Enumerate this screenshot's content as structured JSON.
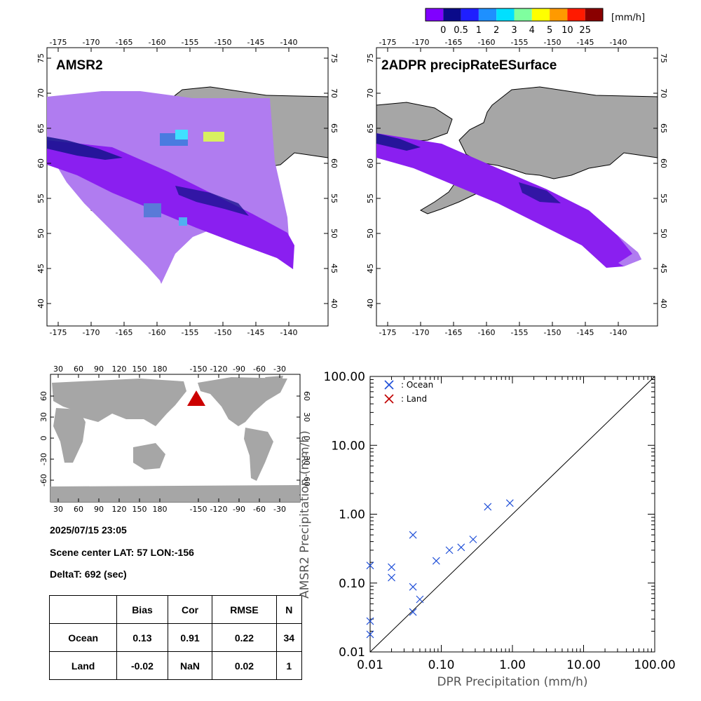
{
  "colorbar": {
    "unit": "[mm/h]",
    "labels": [
      "0",
      "0.5",
      "1",
      "2",
      "3",
      "4",
      "5",
      "10",
      "25"
    ],
    "colors": [
      "#8000ff",
      "#0a0a8a",
      "#1f1fff",
      "#1e90ff",
      "#00e0ff",
      "#7fff9f",
      "#ffff00",
      "#ff9a00",
      "#ff1a00",
      "#8a0000"
    ]
  },
  "map_amsr2": {
    "title": "AMSR2",
    "lon_ticks": [
      "-175",
      "-170",
      "-165",
      "-160",
      "-155",
      "-150",
      "-145",
      "-140"
    ],
    "lat_ticks": [
      "40",
      "45",
      "50",
      "55",
      "60",
      "65",
      "70",
      "75"
    ]
  },
  "map_dpr": {
    "title": "2ADPR precipRateESurface",
    "lon_ticks": [
      "-175",
      "-170",
      "-165",
      "-160",
      "-155",
      "-150",
      "-145",
      "-140"
    ],
    "lat_ticks": [
      "40",
      "45",
      "50",
      "55",
      "60",
      "65",
      "70",
      "75"
    ]
  },
  "world_map": {
    "lon_ticks": [
      "30",
      "60",
      "90",
      "120",
      "150",
      "180",
      "-150",
      "-120",
      "-90",
      "-60",
      "-30"
    ],
    "lat_ticks": [
      "60",
      "30",
      "0",
      "-30",
      "-60"
    ],
    "marker_color": "#cc0000"
  },
  "info": {
    "datetime": "2025/07/15 23:05",
    "scene_center": "Scene center LAT: 57   LON:-156",
    "delta_t": "DeltaT:  692 (sec)"
  },
  "stats_table": {
    "headers": [
      "",
      "Bias",
      "Cor",
      "RMSE",
      "N"
    ],
    "rows": [
      [
        "Ocean",
        "0.13",
        "0.91",
        "0.22",
        "34"
      ],
      [
        "Land",
        "-0.02",
        "NaN",
        "0.02",
        "1"
      ]
    ]
  },
  "chart_data": {
    "type": "scatter",
    "xlabel": "DPR Precipitation (mm/h)",
    "ylabel": "AMSR2 Precipitation (mm/h)",
    "xscale": "log",
    "yscale": "log",
    "xlim": [
      0.01,
      100
    ],
    "ylim": [
      0.01,
      100
    ],
    "xticks": [
      "0.01",
      "0.10",
      "1.00",
      "10.00",
      "100.00"
    ],
    "yticks": [
      "0.01",
      "0.10",
      "1.00",
      "10.00",
      "100.00"
    ],
    "one_to_one_line": true,
    "legend_position": "top-left",
    "series": [
      {
        "name": ": Ocean",
        "color": "#1f4fd8",
        "points": [
          [
            0.01,
            0.018
          ],
          [
            0.01,
            0.028
          ],
          [
            0.01,
            0.18
          ],
          [
            0.02,
            0.12
          ],
          [
            0.02,
            0.17
          ],
          [
            0.04,
            0.038
          ],
          [
            0.04,
            0.088
          ],
          [
            0.04,
            0.5
          ],
          [
            0.05,
            0.058
          ],
          [
            0.085,
            0.21
          ],
          [
            0.13,
            0.3
          ],
          [
            0.19,
            0.33
          ],
          [
            0.28,
            0.43
          ],
          [
            0.45,
            1.28
          ],
          [
            0.92,
            1.45
          ]
        ]
      },
      {
        "name": ": Land",
        "color": "#c00000",
        "points": []
      }
    ]
  }
}
